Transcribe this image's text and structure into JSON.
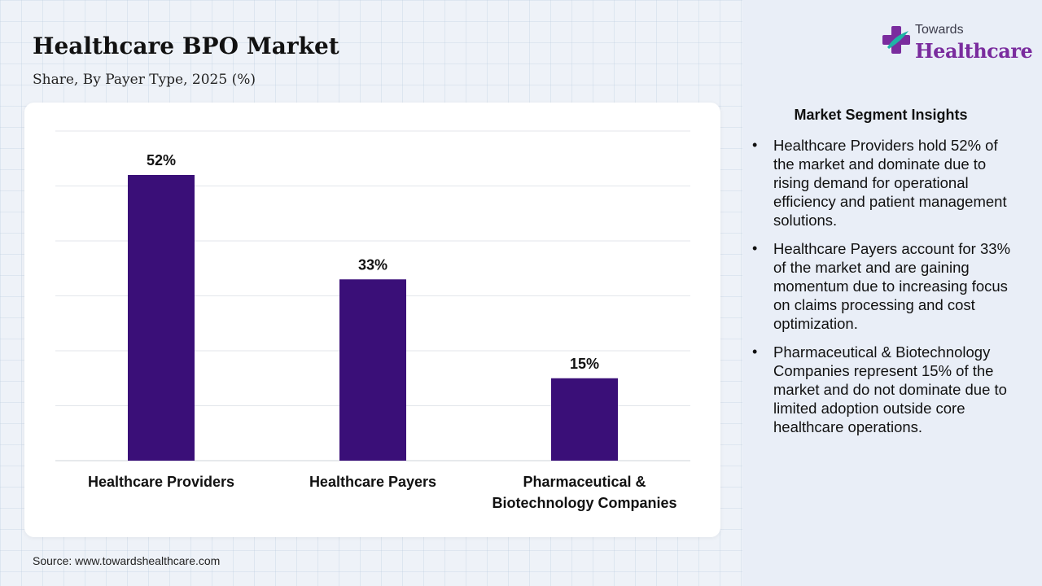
{
  "header": {
    "title": "Healthcare BPO Market",
    "subtitle": "Share, By Payer Type, 2025 (%)"
  },
  "logo": {
    "line1": "Towards",
    "line2": "Healthcare",
    "brand_color": "#7a2c9e",
    "accent_color": "#1fb3a6"
  },
  "chart_data": {
    "type": "bar",
    "title": "Healthcare BPO Market",
    "subtitle": "Share, By Payer Type, 2025 (%)",
    "categories": [
      "Healthcare Providers",
      "Healthcare Payers",
      "Pharmaceutical & Biotechnology Companies"
    ],
    "category_lines": [
      [
        "Healthcare Providers"
      ],
      [
        "Healthcare Payers"
      ],
      [
        "Pharmaceutical &",
        "Biotechnology Companies"
      ]
    ],
    "values": [
      52,
      33,
      15
    ],
    "data_labels": [
      "52%",
      "33%",
      "15%"
    ],
    "ylim": [
      0,
      60
    ],
    "grid": true,
    "bar_color": "#3a0f78",
    "legend": "none"
  },
  "insights": {
    "title": "Market Segment Insights",
    "items": [
      "Healthcare Providers hold 52% of the market and dominate due to rising demand for operational efficiency and patient management solutions.",
      "Healthcare Payers account for 33% of the market and are gaining momentum due to increasing focus on claims processing and cost optimization.",
      "Pharmaceutical & Biotechnology Companies represent 15% of the market and do not dominate due to limited adoption outside core healthcare operations."
    ]
  },
  "footer": {
    "source": "Source: www.towardshealthcare.com"
  }
}
